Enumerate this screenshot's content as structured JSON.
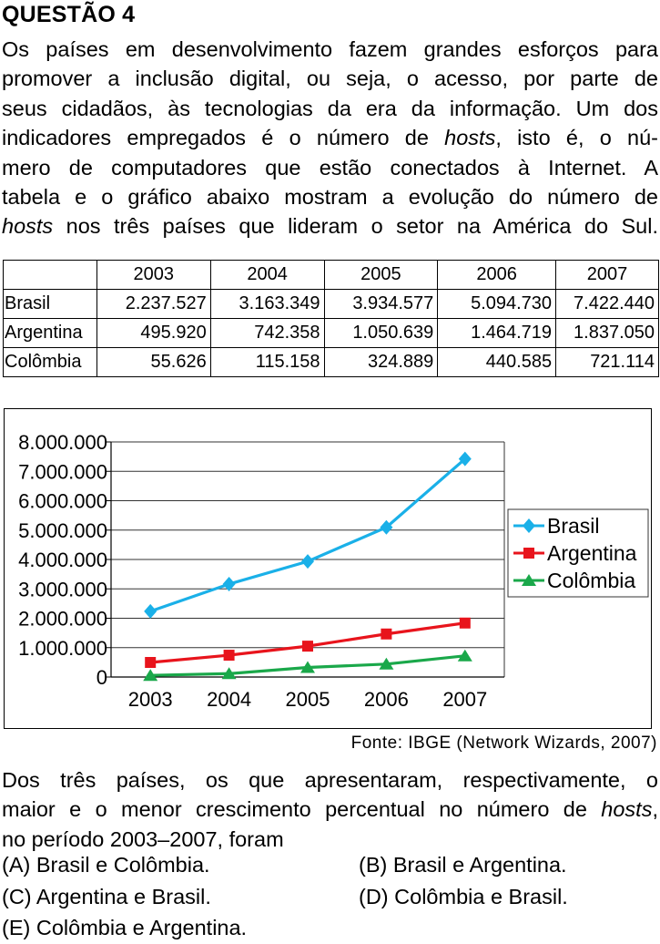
{
  "heading": "QUESTÃO 4",
  "intro_lines": [
    [
      "Os países em desenvolvimento fazem grandes esforços para"
    ],
    [
      "promover a inclusão digital, ou seja, o acesso, por parte de"
    ],
    [
      "seus cidadãos, às tecnologias da era da informação. Um dos"
    ],
    [
      "indicadores empregados é o número de ",
      "hosts",
      ", isto é, o nú-"
    ],
    [
      "mero de computadores que estão conectados à Internet. A"
    ],
    [
      "tabela e o gráfico abaixo mostram a evolução do número de"
    ],
    [
      "",
      "hosts",
      " nos três países que lideram o setor na América do Sul."
    ]
  ],
  "table": {
    "years": [
      "2003",
      "2004",
      "2005",
      "2006",
      "2007"
    ],
    "rows": [
      {
        "country": "Brasil",
        "values": [
          "2.237.527",
          "3.163.349",
          "3.934.577",
          "5.094.730",
          "7.422.440"
        ]
      },
      {
        "country": "Argentina",
        "values": [
          "495.920",
          "742.358",
          "1.050.639",
          "1.464.719",
          "1.837.050"
        ]
      },
      {
        "country": "Colômbia",
        "values": [
          "55.626",
          "115.158",
          "324.889",
          "440.585",
          "721.114"
        ]
      }
    ]
  },
  "chart_data": {
    "type": "line",
    "x": [
      "2003",
      "2004",
      "2005",
      "2006",
      "2007"
    ],
    "y_ticks": [
      "8.000.000",
      "7.000.000",
      "6.000.000",
      "5.000.000",
      "4.000.000",
      "3.000.000",
      "2.000.000",
      "1.000.000",
      "0"
    ],
    "ylim": [
      0,
      8000000
    ],
    "grid": "horizontal",
    "legend": "right",
    "series": [
      {
        "name": "Brasil",
        "color": "#1ab0e8",
        "marker": "diamond",
        "values": [
          2237527,
          3163349,
          3934577,
          5094730,
          7422440
        ]
      },
      {
        "name": "Argentina",
        "color": "#e8141c",
        "marker": "square",
        "values": [
          495920,
          742358,
          1050639,
          1464719,
          1837050
        ]
      },
      {
        "name": "Colômbia",
        "color": "#1aa84a",
        "marker": "triangle",
        "values": [
          55626,
          115158,
          324889,
          440585,
          721114
        ]
      }
    ]
  },
  "source": "Fonte: IBGE (Network Wizards, 2007)",
  "question_lines": [
    [
      "Dos três países, os que apresentaram, respectivamente, o"
    ],
    [
      "maior e o menor crescimento percentual no número de ",
      "hosts",
      ","
    ],
    [
      "no período 2003–2007, foram"
    ]
  ],
  "options": [
    {
      "letter": "(A)",
      "text": "Brasil e Colômbia."
    },
    {
      "letter": "(B)",
      "text": "Brasil e Argentina."
    },
    {
      "letter": "(C)",
      "text": "Argentina e Brasil."
    },
    {
      "letter": "(D)",
      "text": "Colômbia e Brasil."
    },
    {
      "letter": "(E)",
      "text": "Colômbia e Argentina."
    }
  ]
}
